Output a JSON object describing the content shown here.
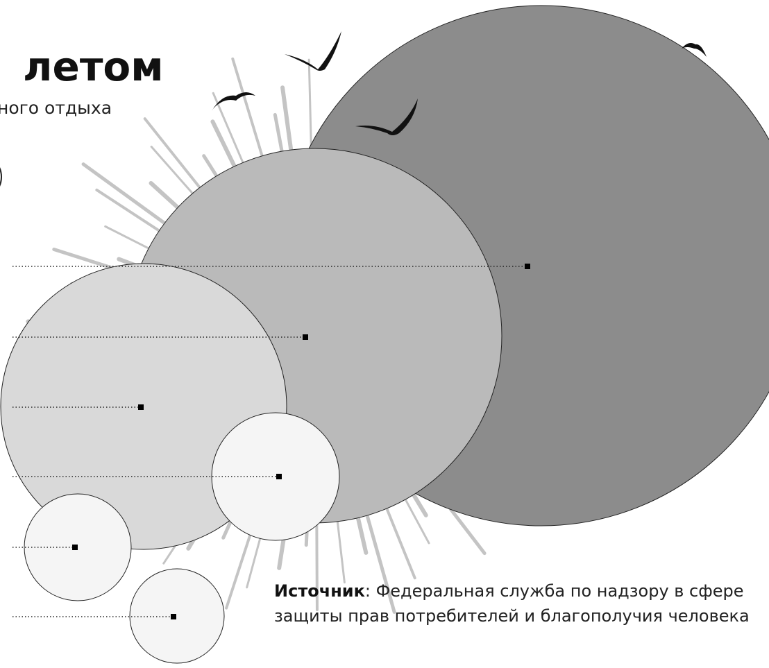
{
  "header": {
    "title": "летом",
    "subtitle": "ного отдыха"
  },
  "source": {
    "label": "Источник",
    "lines": [
      ": Федеральная служба по надзору в сфере",
      "защиты прав потребителей и благополучия человека"
    ]
  }
}
